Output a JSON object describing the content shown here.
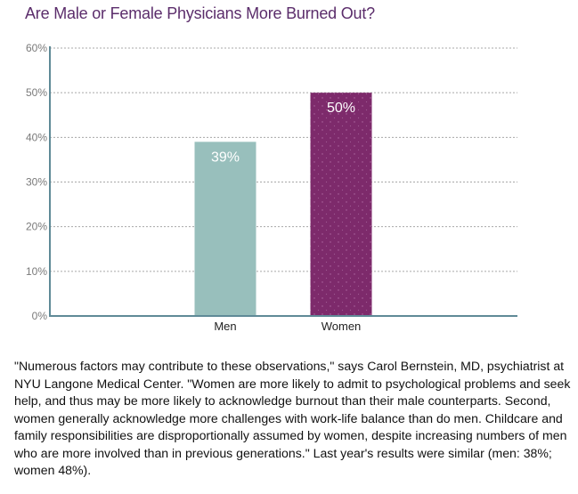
{
  "chart_data": {
    "type": "bar",
    "title": "Are Male or Female Physicians More Burned Out?",
    "categories": [
      "Men",
      "Women"
    ],
    "values": [
      39,
      50
    ],
    "value_labels": [
      "39%",
      "50%"
    ],
    "bar_colors": [
      "#98bfbc",
      "#7d2a6b"
    ],
    "ylim": [
      0,
      60
    ],
    "yticks": [
      0,
      10,
      20,
      30,
      40,
      50,
      60
    ],
    "ytick_labels": [
      "0%",
      "10%",
      "20%",
      "30%",
      "40%",
      "50%",
      "60%"
    ],
    "xlabel": "",
    "ylabel": "",
    "grid": true
  },
  "caption": "\"Numerous factors may contribute to these observations,\" says Carol Bernstein, MD, psychiatrist at NYU Langone Medical Center. \"Women are more likely to admit to psychological problems and seek help, and thus may be more likely to acknowledge burnout than their male counterparts. Second, women generally acknowledge more challenges with work-life balance than do men. Childcare and family responsibilities are disproportionally assumed by women, despite increasing numbers of men who are more involved than in previous generations.\" Last year's results were similar (men: 38%; women 48%).",
  "colors": {
    "title": "#5b2d6b",
    "axis": "#5f8a97",
    "grid": "#a8a8a8",
    "tick_text": "#7a7a7a"
  }
}
